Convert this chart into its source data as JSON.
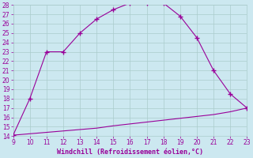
{
  "xlabel": "Windchill (Refroidissement éolien,°C)",
  "line1_x": [
    9,
    10,
    11,
    12,
    13,
    14,
    15,
    16,
    17,
    18,
    19,
    20,
    21,
    22,
    23
  ],
  "line1_y": [
    14.1,
    18.0,
    23.0,
    23.0,
    25.0,
    26.5,
    27.5,
    28.2,
    28.2,
    28.2,
    26.8,
    24.5,
    21.0,
    18.5,
    17.0
  ],
  "line2_x": [
    9,
    10,
    11,
    12,
    13,
    14,
    15,
    16,
    17,
    18,
    19,
    20,
    21,
    22,
    23
  ],
  "line2_y": [
    14.1,
    14.25,
    14.4,
    14.55,
    14.7,
    14.85,
    15.1,
    15.3,
    15.5,
    15.7,
    15.9,
    16.1,
    16.3,
    16.6,
    17.0
  ],
  "line_color": "#990099",
  "bg_color": "#cce8f0",
  "grid_color": "#aacccc",
  "xlim": [
    9,
    23
  ],
  "ylim": [
    14,
    28
  ],
  "xticks": [
    9,
    10,
    11,
    12,
    13,
    14,
    15,
    16,
    17,
    18,
    19,
    20,
    21,
    22,
    23
  ],
  "yticks": [
    14,
    15,
    16,
    17,
    18,
    19,
    20,
    21,
    22,
    23,
    24,
    25,
    26,
    27,
    28
  ],
  "tick_color": "#990099",
  "label_color": "#990099"
}
